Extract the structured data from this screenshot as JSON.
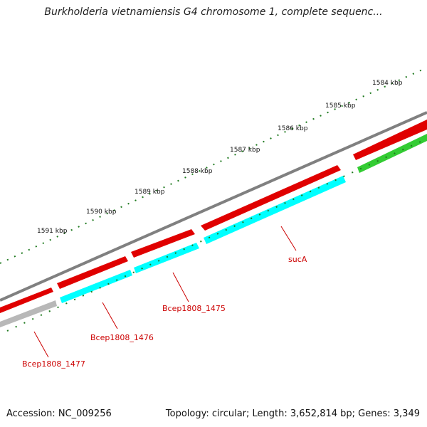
{
  "title": "Burkholderia vietnamiensis G4 chromosome 1, complete sequenc...",
  "kbp_labels": [
    "1584 kbp",
    "1585 kbp",
    "1586 kbp",
    "1587 kbp",
    "1588 kbp",
    "1589 kbp",
    "1590 kbp",
    "1591 kbp"
  ],
  "gene_labels": [
    "sucA",
    "Bcep1808_1475",
    "Bcep1808_1476",
    "Bcep1808_1477"
  ],
  "footer": {
    "accession": "Accession: NC_009256",
    "summary": "Topology: circular; Length: 3,652,814 bp; Genes: 3,349"
  },
  "colors": {
    "backbone": "#808080",
    "forward_gene": "#ff0000",
    "reverse_gene": "#00ffff",
    "gray_gene": "#b8b8b8",
    "green_gene": "#33cc33",
    "ticks": "#1f7a1f",
    "label_red": "#cc0000"
  }
}
